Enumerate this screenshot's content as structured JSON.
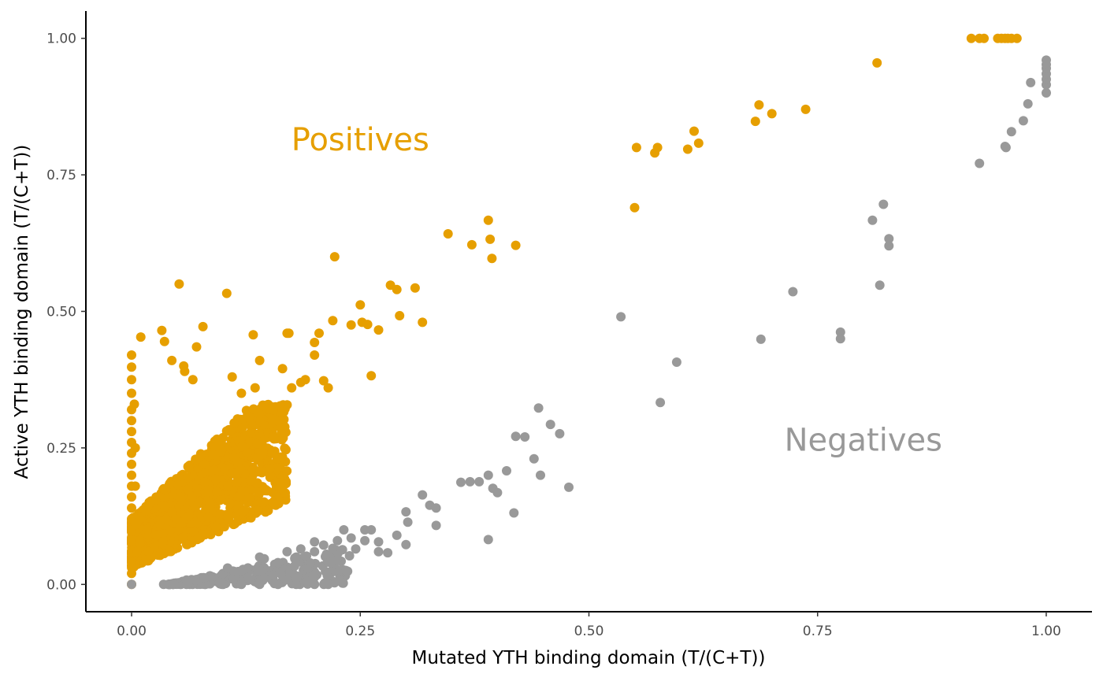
{
  "chart_data": {
    "type": "scatter",
    "title": "",
    "xlabel": "Mutated YTH binding domain (T/(C+T))",
    "ylabel": "Active YTH binding domain (T/(C+T))",
    "xlim": [
      -0.05,
      1.05
    ],
    "ylim": [
      -0.05,
      1.05
    ],
    "x_ticks": [
      "0.00",
      "0.25",
      "0.50",
      "0.75",
      "1.00"
    ],
    "y_ticks": [
      "0.00",
      "0.25",
      "0.50",
      "0.75",
      "1.00"
    ],
    "grid": false,
    "legend": "none",
    "colors": {
      "positives": "#E69F00",
      "negatives": "#999999"
    },
    "annotations": [
      {
        "text": "Positives",
        "x": 0.25,
        "y": 0.795,
        "series": "positives"
      },
      {
        "text": "Negatives",
        "x": 0.8,
        "y": 0.245,
        "series": "negatives"
      }
    ],
    "series": [
      {
        "key": "positives",
        "points": [
          [
            0.0,
            0.42
          ],
          [
            0.0,
            0.398
          ],
          [
            0.0,
            0.375
          ],
          [
            0.0,
            0.35
          ],
          [
            0.0,
            0.32
          ],
          [
            0.0,
            0.3
          ],
          [
            0.0,
            0.28
          ],
          [
            0.0,
            0.26
          ],
          [
            0.0,
            0.24
          ],
          [
            0.0,
            0.22
          ],
          [
            0.0,
            0.2
          ],
          [
            0.0,
            0.18
          ],
          [
            0.0,
            0.16
          ],
          [
            0.0,
            0.14
          ],
          [
            0.0,
            0.12
          ],
          [
            0.0,
            0.1
          ],
          [
            0.0,
            0.08
          ],
          [
            0.0,
            0.06
          ],
          [
            0.0,
            0.04
          ],
          [
            0.0,
            0.02
          ],
          [
            0.0,
            0.0
          ],
          [
            0.01,
            0.453
          ],
          [
            0.003,
            0.33
          ],
          [
            0.004,
            0.25
          ],
          [
            0.004,
            0.18
          ],
          [
            0.005,
            0.11
          ],
          [
            0.006,
            0.06
          ],
          [
            0.033,
            0.465
          ],
          [
            0.036,
            0.445
          ],
          [
            0.044,
            0.41
          ],
          [
            0.052,
            0.55
          ],
          [
            0.057,
            0.4
          ],
          [
            0.058,
            0.39
          ],
          [
            0.067,
            0.375
          ],
          [
            0.071,
            0.435
          ],
          [
            0.078,
            0.472
          ],
          [
            0.104,
            0.533
          ],
          [
            0.11,
            0.38
          ],
          [
            0.12,
            0.35
          ],
          [
            0.135,
            0.36
          ],
          [
            0.133,
            0.457
          ],
          [
            0.14,
            0.41
          ],
          [
            0.155,
            0.32
          ],
          [
            0.16,
            0.3
          ],
          [
            0.165,
            0.395
          ],
          [
            0.17,
            0.46
          ],
          [
            0.172,
            0.46
          ],
          [
            0.175,
            0.36
          ],
          [
            0.185,
            0.37
          ],
          [
            0.19,
            0.375
          ],
          [
            0.2,
            0.42
          ],
          [
            0.2,
            0.443
          ],
          [
            0.205,
            0.46
          ],
          [
            0.21,
            0.373
          ],
          [
            0.215,
            0.36
          ],
          [
            0.22,
            0.483
          ],
          [
            0.222,
            0.6
          ],
          [
            0.24,
            0.475
          ],
          [
            0.25,
            0.512
          ],
          [
            0.252,
            0.48
          ],
          [
            0.258,
            0.476
          ],
          [
            0.262,
            0.382
          ],
          [
            0.27,
            0.466
          ],
          [
            0.283,
            0.548
          ],
          [
            0.29,
            0.54
          ],
          [
            0.293,
            0.492
          ],
          [
            0.31,
            0.543
          ],
          [
            0.318,
            0.48
          ],
          [
            0.346,
            0.642
          ],
          [
            0.372,
            0.622
          ],
          [
            0.39,
            0.667
          ],
          [
            0.392,
            0.632
          ],
          [
            0.394,
            0.597
          ],
          [
            0.42,
            0.621
          ],
          [
            0.55,
            0.69
          ],
          [
            0.552,
            0.8
          ],
          [
            0.572,
            0.79
          ],
          [
            0.575,
            0.8
          ],
          [
            0.608,
            0.797
          ],
          [
            0.615,
            0.83
          ],
          [
            0.62,
            0.808
          ],
          [
            0.682,
            0.848
          ],
          [
            0.686,
            0.878
          ],
          [
            0.7,
            0.862
          ],
          [
            0.737,
            0.87
          ],
          [
            0.815,
            0.955
          ],
          [
            0.918,
            1.0
          ],
          [
            0.927,
            1.0
          ],
          [
            0.932,
            1.0
          ],
          [
            0.947,
            1.0
          ],
          [
            0.951,
            1.0
          ],
          [
            0.955,
            1.0
          ],
          [
            0.958,
            1.0
          ],
          [
            0.962,
            1.0
          ],
          [
            0.968,
            1.0
          ]
        ]
      },
      {
        "key": "negatives",
        "points": [
          [
            0.0,
            0.0
          ],
          [
            0.035,
            0.0
          ],
          [
            0.045,
            0.0
          ],
          [
            0.06,
            0.0
          ],
          [
            0.08,
            0.0
          ],
          [
            0.1,
            0.0
          ],
          [
            0.12,
            0.0
          ],
          [
            0.14,
            0.0
          ],
          [
            0.16,
            0.0
          ],
          [
            0.18,
            0.0
          ],
          [
            0.2,
            0.0
          ],
          [
            0.215,
            0.0
          ],
          [
            0.06,
            0.008
          ],
          [
            0.08,
            0.012
          ],
          [
            0.1,
            0.02
          ],
          [
            0.105,
            0.03
          ],
          [
            0.12,
            0.025
          ],
          [
            0.14,
            0.05
          ],
          [
            0.145,
            0.047
          ],
          [
            0.16,
            0.04
          ],
          [
            0.17,
            0.06
          ],
          [
            0.18,
            0.05
          ],
          [
            0.185,
            0.065
          ],
          [
            0.2,
            0.06
          ],
          [
            0.2,
            0.078
          ],
          [
            0.21,
            0.072
          ],
          [
            0.22,
            0.066
          ],
          [
            0.225,
            0.08
          ],
          [
            0.232,
            0.1
          ],
          [
            0.24,
            0.085
          ],
          [
            0.245,
            0.065
          ],
          [
            0.255,
            0.08
          ],
          [
            0.255,
            0.1
          ],
          [
            0.262,
            0.1
          ],
          [
            0.27,
            0.06
          ],
          [
            0.27,
            0.078
          ],
          [
            0.28,
            0.058
          ],
          [
            0.29,
            0.09
          ],
          [
            0.3,
            0.073
          ],
          [
            0.3,
            0.133
          ],
          [
            0.302,
            0.114
          ],
          [
            0.318,
            0.164
          ],
          [
            0.326,
            0.145
          ],
          [
            0.333,
            0.14
          ],
          [
            0.333,
            0.108
          ],
          [
            0.36,
            0.187
          ],
          [
            0.37,
            0.188
          ],
          [
            0.38,
            0.188
          ],
          [
            0.39,
            0.2
          ],
          [
            0.39,
            0.082
          ],
          [
            0.395,
            0.176
          ],
          [
            0.4,
            0.168
          ],
          [
            0.41,
            0.208
          ],
          [
            0.418,
            0.131
          ],
          [
            0.42,
            0.271
          ],
          [
            0.43,
            0.27
          ],
          [
            0.44,
            0.23
          ],
          [
            0.445,
            0.323
          ],
          [
            0.447,
            0.2
          ],
          [
            0.458,
            0.293
          ],
          [
            0.468,
            0.276
          ],
          [
            0.478,
            0.178
          ],
          [
            0.535,
            0.49
          ],
          [
            0.578,
            0.333
          ],
          [
            0.596,
            0.407
          ],
          [
            0.688,
            0.449
          ],
          [
            0.723,
            0.536
          ],
          [
            0.775,
            0.462
          ],
          [
            0.775,
            0.45
          ],
          [
            0.81,
            0.667
          ],
          [
            0.818,
            0.548
          ],
          [
            0.822,
            0.696
          ],
          [
            0.828,
            0.633
          ],
          [
            0.828,
            0.62
          ],
          [
            0.927,
            0.771
          ],
          [
            0.955,
            0.802
          ],
          [
            0.956,
            0.8
          ],
          [
            0.962,
            0.829
          ],
          [
            0.975,
            0.849
          ],
          [
            0.98,
            0.88
          ],
          [
            0.983,
            0.919
          ],
          [
            1.0,
            0.9
          ],
          [
            1.0,
            0.915
          ],
          [
            1.0,
            0.925
          ],
          [
            1.0,
            0.935
          ],
          [
            1.0,
            0.945
          ],
          [
            1.0,
            0.952
          ],
          [
            1.0,
            0.96
          ]
        ]
      }
    ]
  }
}
